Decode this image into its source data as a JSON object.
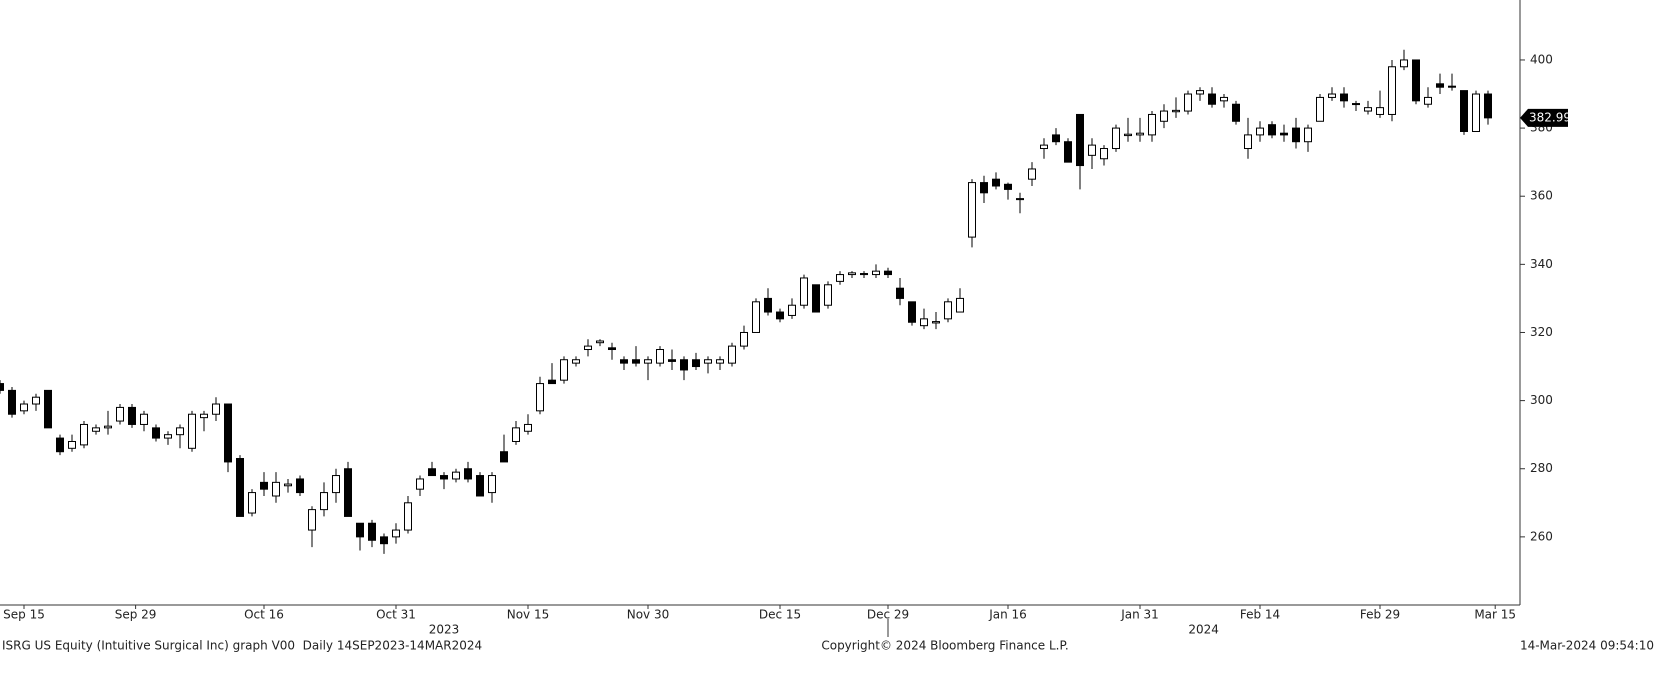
{
  "chart_data": {
    "type": "candlestick",
    "color": "#000000",
    "open": [
      305,
      303,
      297,
      299,
      303,
      289,
      286,
      287,
      291,
      292,
      294,
      298,
      293,
      292,
      289,
      290,
      286,
      295,
      296,
      299,
      283,
      267,
      276,
      272,
      275,
      277,
      262,
      268,
      273,
      280,
      264,
      264,
      260,
      260,
      262,
      274,
      280,
      278,
      277,
      280,
      278,
      273,
      285,
      288,
      291,
      297,
      306,
      306,
      311,
      315,
      317,
      315.5,
      312,
      312,
      311,
      311,
      312,
      312,
      312,
      311,
      311,
      311,
      316,
      320,
      330,
      326,
      325,
      328,
      334,
      328,
      335,
      337,
      337,
      337,
      338,
      333,
      329,
      322,
      322.8,
      324,
      326,
      348,
      364,
      365,
      363.5,
      359,
      365,
      374,
      378,
      376,
      384,
      372,
      371,
      374,
      377.8,
      378,
      378,
      382,
      384.8,
      385,
      390,
      390,
      388,
      387,
      374,
      378,
      381,
      378.5,
      380,
      376,
      382,
      389,
      390,
      387.2,
      385,
      384,
      384,
      398,
      400,
      387,
      393,
      392.3,
      391,
      379,
      390
    ],
    "high": [
      306,
      304,
      300,
      302,
      303,
      290,
      290,
      294,
      293,
      297,
      299,
      299,
      297,
      293,
      291,
      293,
      297,
      297,
      301,
      299,
      284,
      274,
      279,
      279,
      277,
      278,
      269,
      276,
      280,
      282,
      264,
      265,
      261,
      264,
      272,
      278,
      282,
      279,
      280,
      282,
      279,
      279,
      290,
      294,
      296,
      307,
      311,
      313,
      313,
      318,
      318,
      317,
      313,
      316,
      313,
      316,
      315,
      313,
      314,
      313,
      313,
      317,
      322,
      330,
      333,
      327,
      330,
      337,
      334,
      335,
      338,
      338,
      338,
      340,
      339,
      336,
      329,
      327,
      326,
      330,
      333,
      365,
      366,
      367,
      364,
      361,
      370,
      377,
      380,
      377,
      384,
      377,
      375,
      381,
      383,
      383,
      385,
      387,
      389,
      391,
      392,
      392,
      390,
      388,
      383,
      382,
      382,
      381,
      383,
      381,
      390,
      392,
      392,
      388,
      388,
      391,
      400,
      403,
      400,
      392,
      396,
      396,
      391,
      391,
      391
    ],
    "low": [
      302,
      295,
      296,
      297,
      292,
      284,
      285,
      286,
      290,
      290,
      293,
      292,
      291,
      288,
      287,
      286,
      285,
      291,
      294,
      279,
      266,
      266,
      272,
      270,
      273,
      272,
      257,
      266,
      270,
      266,
      256,
      257,
      255,
      258,
      261,
      272,
      278,
      274,
      276,
      276,
      272,
      270,
      282,
      287,
      290,
      296,
      305,
      305,
      310,
      313,
      316,
      312,
      309,
      310,
      306,
      310,
      309,
      306,
      309,
      308,
      309,
      310,
      315,
      320,
      325,
      323,
      324,
      327,
      326,
      327,
      334,
      336,
      336,
      336,
      336,
      328,
      322,
      321,
      321,
      323,
      326,
      345,
      358,
      362,
      359,
      355,
      363,
      371,
      375,
      370,
      362,
      368,
      369,
      373,
      376,
      376,
      376,
      380,
      383,
      384,
      388,
      386,
      386,
      381,
      371,
      376,
      377,
      376,
      374,
      373,
      382,
      388,
      386,
      385,
      384,
      383,
      382,
      397,
      387,
      386,
      390,
      391,
      378,
      379,
      381
    ],
    "close": [
      303,
      296,
      299,
      301,
      292,
      285,
      288,
      293,
      292,
      292.5,
      298,
      293,
      296,
      289,
      290,
      292,
      296,
      296,
      299,
      282,
      266,
      273,
      274,
      276,
      275.5,
      273,
      268,
      273,
      278,
      266,
      260,
      259,
      258,
      262,
      270,
      277,
      278,
      277,
      279,
      277,
      272,
      278,
      282,
      292,
      293,
      305,
      305,
      312,
      312,
      316,
      317.5,
      315,
      311,
      311,
      312,
      315,
      311.5,
      309,
      310,
      312,
      312,
      316,
      320,
      329,
      326,
      324,
      328,
      336,
      326,
      334,
      337,
      337.5,
      337.3,
      338,
      337,
      330,
      323,
      324,
      323.2,
      329,
      330,
      364,
      361,
      363,
      362,
      359.3,
      368,
      375,
      376,
      370,
      369,
      375,
      374,
      380,
      378.2,
      378.5,
      384,
      385,
      385.2,
      390,
      391,
      387,
      389,
      382,
      378,
      380,
      378,
      378,
      376,
      380,
      389,
      390,
      388,
      387,
      386,
      386,
      398,
      400,
      388,
      389,
      392,
      392,
      379,
      390,
      383
    ],
    "xticks": [
      {
        "value": 2,
        "label": "Sep 15"
      },
      {
        "value": 11.3,
        "label": "Sep 29"
      },
      {
        "value": 22,
        "label": "Oct 16"
      },
      {
        "value": 33,
        "label": "Oct 31"
      },
      {
        "value": 44,
        "label": "Nov 15"
      },
      {
        "value": 54,
        "label": "Nov 30"
      },
      {
        "value": 65,
        "label": "Dec 15"
      },
      {
        "value": 74,
        "label": "Dec 29"
      },
      {
        "value": 84,
        "label": "Jan 16"
      },
      {
        "value": 95,
        "label": "Jan 31"
      },
      {
        "value": 105,
        "label": "Feb 14"
      },
      {
        "value": 115,
        "label": "Feb 29"
      },
      {
        "value": 124.6,
        "label": "Mar 15"
      }
    ],
    "years": [
      {
        "value": 37,
        "label": "2023"
      },
      {
        "value": 100.3,
        "label": "2024"
      }
    ],
    "year_divider": 74,
    "ylim": [
      240,
      417.6
    ],
    "yticks": [
      260,
      280,
      300,
      320,
      340,
      360,
      380,
      400
    ],
    "last_price": 382.99,
    "footer_left": "ISRG US Equity (Intuitive Surgical Inc) graph V00  Daily 14SEP2023-14MAR2024",
    "footer_center": "Copyright© 2024 Bloomberg Finance L.P.",
    "footer_right": "14-Mar-2024 09:54:10"
  }
}
